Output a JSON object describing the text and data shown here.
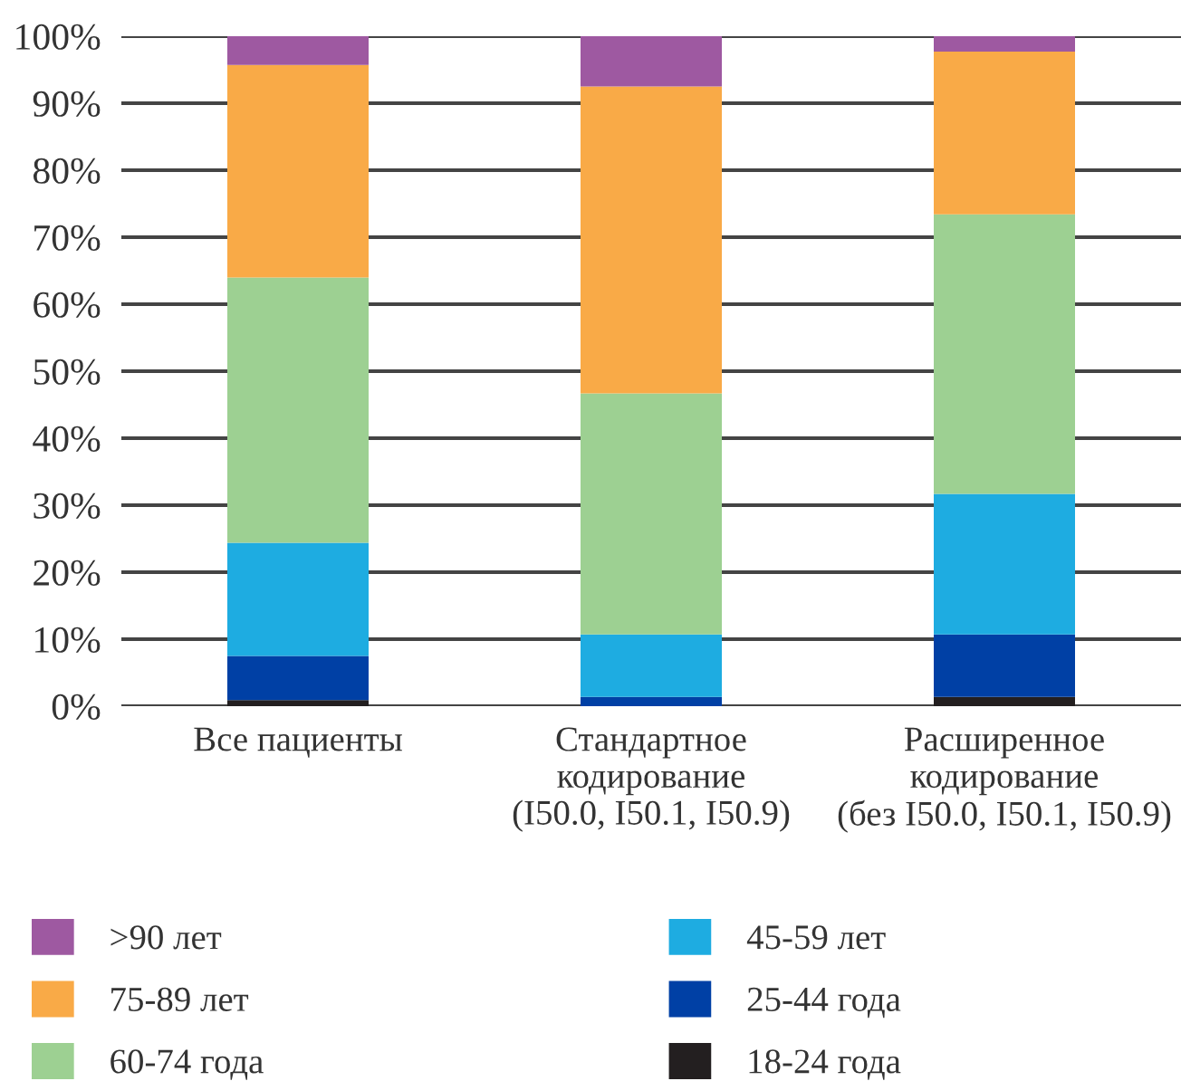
{
  "chart_data": {
    "type": "bar",
    "stacked": true,
    "categories": [
      "Все пациенты",
      "Стандартное\nкодирование\n(I50.0, I50.1, I50.9)",
      "Расширенное\nкодирование\n(без I50.0, I50.1, I50.9)"
    ],
    "series": [
      {
        "name": "18-24 года",
        "color": "#231f20",
        "values": [
          0.9,
          0,
          1.4
        ]
      },
      {
        "name": "25-44 года",
        "color": "#0040a5",
        "values": [
          6.6,
          1.4,
          9.3
        ]
      },
      {
        "name": "45-59 лет",
        "color": "#1eace1",
        "values": [
          16.9,
          9.3,
          21.0
        ]
      },
      {
        "name": "60-74 года",
        "color": "#9dd092",
        "values": [
          39.6,
          36.0,
          41.7
        ]
      },
      {
        "name": "75-89 лет",
        "color": "#f9aa47",
        "values": [
          31.7,
          45.8,
          24.3
        ]
      },
      {
        "name": ">90 лет",
        "color": "#9e59a1",
        "values": [
          4.3,
          7.5,
          2.3
        ]
      }
    ],
    "ylim": [
      0,
      100
    ],
    "yticks": [
      {
        "value": 0,
        "label": "0%"
      },
      {
        "value": 10,
        "label": "10%"
      },
      {
        "value": 20,
        "label": "20%"
      },
      {
        "value": 30,
        "label": "30%"
      },
      {
        "value": 40,
        "label": "40%"
      },
      {
        "value": 50,
        "label": "50%"
      },
      {
        "value": 60,
        "label": "60%"
      },
      {
        "value": 70,
        "label": "70%"
      },
      {
        "value": 80,
        "label": "80%"
      },
      {
        "value": 90,
        "label": "90%"
      },
      {
        "value": 100,
        "label": "100%"
      }
    ],
    "grid": "y",
    "legend": "bottom"
  }
}
